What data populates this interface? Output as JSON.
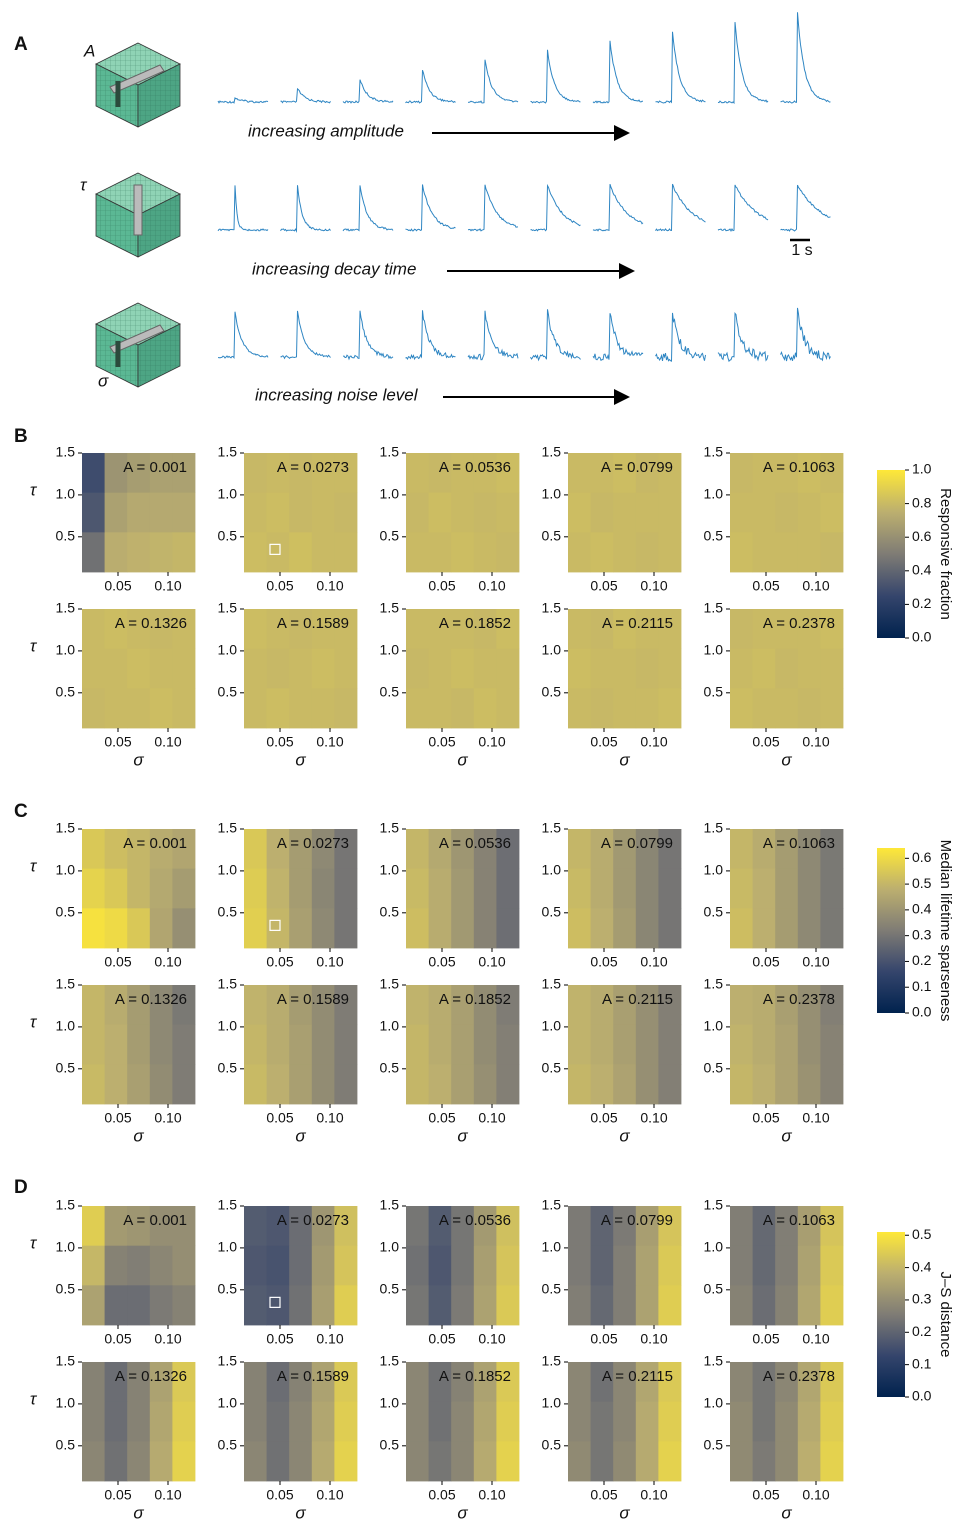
{
  "panel_a": {
    "label": "A",
    "rows": [
      {
        "param": "A",
        "caption": "increasing amplitude"
      },
      {
        "param": "τ",
        "caption": "increasing decay time"
      },
      {
        "param": "σ",
        "caption": "increasing noise level"
      }
    ],
    "scale_bar": "1 s"
  },
  "chart_data": [
    {
      "type": "heatmap",
      "panel_label": "B",
      "colorbar_label": "Responsive fraction",
      "colormap": "cividis",
      "xlabel": "σ",
      "ylabel": "τ",
      "xlim": [
        0.014,
        0.127
      ],
      "ylim": [
        0.08,
        1.5
      ],
      "xticks": [
        0.05,
        {
          "value": 0.1,
          "label": "0.10"
        }
      ],
      "yticks": [
        0.5,
        {
          "value": 1,
          "label": "1.0"
        },
        1.5
      ],
      "clim": [
        0,
        1
      ],
      "cticks": [
        {
          "value": 0,
          "label": "0.0"
        },
        0.2,
        0.4,
        0.6,
        0.8,
        {
          "value": 1,
          "label": "1.0"
        }
      ],
      "subplots": [
        {
          "title": "A = 0.001",
          "z": [
            [
              0.28,
              0.62,
              0.66,
              0.68,
              0.68
            ],
            [
              0.33,
              0.68,
              0.72,
              0.72,
              0.72
            ],
            [
              0.45,
              0.74,
              0.76,
              0.77,
              0.78
            ]
          ]
        },
        {
          "title": "A = 0.0273",
          "z": [
            [
              0.79,
              0.8,
              0.79,
              0.8,
              0.8
            ],
            [
              0.8,
              0.81,
              0.79,
              0.8,
              0.79
            ],
            [
              0.81,
              0.8,
              0.82,
              0.8,
              0.8
            ]
          ],
          "marker": {
            "x": 0.045,
            "y": 0.35
          }
        },
        {
          "title": "A = 0.0536",
          "z": [
            [
              0.8,
              0.79,
              0.8,
              0.8,
              0.81
            ],
            [
              0.79,
              0.81,
              0.8,
              0.79,
              0.8
            ],
            [
              0.8,
              0.8,
              0.81,
              0.8,
              0.79
            ]
          ]
        },
        {
          "title": "A = 0.0799",
          "z": [
            [
              0.8,
              0.8,
              0.81,
              0.79,
              0.8
            ],
            [
              0.81,
              0.79,
              0.8,
              0.8,
              0.8
            ],
            [
              0.8,
              0.81,
              0.8,
              0.79,
              0.8
            ]
          ]
        },
        {
          "title": "A = 0.1063",
          "z": [
            [
              0.79,
              0.8,
              0.8,
              0.81,
              0.8
            ],
            [
              0.8,
              0.8,
              0.79,
              0.8,
              0.81
            ],
            [
              0.81,
              0.8,
              0.8,
              0.8,
              0.79
            ]
          ]
        },
        {
          "title": "A = 0.1326",
          "z": [
            [
              0.8,
              0.81,
              0.8,
              0.79,
              0.8
            ],
            [
              0.8,
              0.8,
              0.81,
              0.8,
              0.8
            ],
            [
              0.79,
              0.8,
              0.8,
              0.81,
              0.8
            ]
          ]
        },
        {
          "title": "A = 0.1589",
          "z": [
            [
              0.81,
              0.8,
              0.79,
              0.8,
              0.8
            ],
            [
              0.8,
              0.79,
              0.8,
              0.81,
              0.8
            ],
            [
              0.8,
              0.81,
              0.8,
              0.8,
              0.79
            ]
          ]
        },
        {
          "title": "A = 0.1852",
          "z": [
            [
              0.8,
              0.8,
              0.8,
              0.79,
              0.81
            ],
            [
              0.79,
              0.8,
              0.81,
              0.8,
              0.8
            ],
            [
              0.8,
              0.8,
              0.79,
              0.81,
              0.8
            ]
          ]
        },
        {
          "title": "A = 0.2115",
          "z": [
            [
              0.8,
              0.79,
              0.81,
              0.8,
              0.8
            ],
            [
              0.81,
              0.8,
              0.8,
              0.79,
              0.8
            ],
            [
              0.8,
              0.79,
              0.8,
              0.8,
              0.81
            ]
          ]
        },
        {
          "title": "A = 0.2378",
          "z": [
            [
              0.79,
              0.8,
              0.8,
              0.8,
              0.81
            ],
            [
              0.8,
              0.81,
              0.79,
              0.8,
              0.8
            ],
            [
              0.81,
              0.8,
              0.8,
              0.79,
              0.8
            ]
          ]
        }
      ]
    },
    {
      "type": "heatmap",
      "panel_label": "C",
      "colorbar_label": "Median lifetime sparseness",
      "colormap": "cividis",
      "xlabel": "σ",
      "ylabel": "τ",
      "xlim": [
        0.014,
        0.127
      ],
      "ylim": [
        0.08,
        1.5
      ],
      "xticks": [
        0.05,
        {
          "value": 0.1,
          "label": "0.10"
        }
      ],
      "yticks": [
        0.5,
        {
          "value": 1,
          "label": "1.0"
        },
        1.5
      ],
      "clim": [
        0,
        0.64
      ],
      "cticks": [
        {
          "value": 0,
          "label": "0.0"
        },
        0.1,
        0.2,
        0.3,
        0.4,
        0.5,
        0.6
      ],
      "subplots": [
        {
          "title": "A = 0.001",
          "z": [
            [
              0.55,
              0.52,
              0.5,
              0.47,
              0.45
            ],
            [
              0.58,
              0.55,
              0.5,
              0.46,
              0.42
            ],
            [
              0.62,
              0.6,
              0.55,
              0.45,
              0.38
            ]
          ]
        },
        {
          "title": "A = 0.0273",
          "z": [
            [
              0.55,
              0.48,
              0.42,
              0.36,
              0.3
            ],
            [
              0.56,
              0.49,
              0.42,
              0.35,
              0.3
            ],
            [
              0.57,
              0.5,
              0.43,
              0.36,
              0.3
            ]
          ],
          "marker": {
            "x": 0.045,
            "y": 0.35
          }
        },
        {
          "title": "A = 0.0536",
          "z": [
            [
              0.5,
              0.46,
              0.4,
              0.34,
              0.28
            ],
            [
              0.51,
              0.47,
              0.41,
              0.34,
              0.28
            ],
            [
              0.52,
              0.47,
              0.41,
              0.34,
              0.28
            ]
          ]
        },
        {
          "title": "A = 0.0799",
          "z": [
            [
              0.5,
              0.47,
              0.41,
              0.35,
              0.3
            ],
            [
              0.51,
              0.47,
              0.41,
              0.35,
              0.3
            ],
            [
              0.52,
              0.48,
              0.42,
              0.35,
              0.3
            ]
          ]
        },
        {
          "title": "A = 0.1063",
          "z": [
            [
              0.5,
              0.47,
              0.42,
              0.36,
              0.31
            ],
            [
              0.51,
              0.48,
              0.42,
              0.36,
              0.31
            ],
            [
              0.52,
              0.48,
              0.42,
              0.36,
              0.31
            ]
          ]
        },
        {
          "title": "A = 0.1326",
          "z": [
            [
              0.5,
              0.47,
              0.42,
              0.36,
              0.31
            ],
            [
              0.5,
              0.48,
              0.42,
              0.36,
              0.32
            ],
            [
              0.51,
              0.48,
              0.43,
              0.37,
              0.32
            ]
          ]
        },
        {
          "title": "A = 0.1589",
          "z": [
            [
              0.49,
              0.47,
              0.42,
              0.37,
              0.32
            ],
            [
              0.5,
              0.47,
              0.43,
              0.37,
              0.32
            ],
            [
              0.51,
              0.48,
              0.43,
              0.37,
              0.32
            ]
          ]
        },
        {
          "title": "A = 0.1852",
          "z": [
            [
              0.49,
              0.47,
              0.43,
              0.37,
              0.32
            ],
            [
              0.5,
              0.47,
              0.43,
              0.37,
              0.33
            ],
            [
              0.5,
              0.48,
              0.43,
              0.38,
              0.33
            ]
          ]
        },
        {
          "title": "A = 0.2115",
          "z": [
            [
              0.49,
              0.47,
              0.43,
              0.38,
              0.33
            ],
            [
              0.49,
              0.47,
              0.43,
              0.38,
              0.33
            ],
            [
              0.5,
              0.48,
              0.44,
              0.38,
              0.33
            ]
          ]
        },
        {
          "title": "A = 0.2378",
          "z": [
            [
              0.48,
              0.47,
              0.43,
              0.38,
              0.33
            ],
            [
              0.49,
              0.47,
              0.44,
              0.38,
              0.34
            ],
            [
              0.5,
              0.48,
              0.44,
              0.39,
              0.34
            ]
          ]
        }
      ]
    },
    {
      "type": "heatmap",
      "panel_label": "D",
      "colorbar_label": "J–S distance",
      "colormap": "cividis",
      "xlabel": "σ",
      "ylabel": "τ",
      "xlim": [
        0.014,
        0.127
      ],
      "ylim": [
        0.08,
        1.5
      ],
      "xticks": [
        0.05,
        {
          "value": 0.1,
          "label": "0.10"
        }
      ],
      "yticks": [
        0.5,
        {
          "value": 1,
          "label": "1.0"
        },
        1.5
      ],
      "clim": [
        0,
        0.51
      ],
      "cticks": [
        {
          "value": 0,
          "label": "0.0"
        },
        0.1,
        0.2,
        0.3,
        0.4,
        0.5
      ],
      "subplots": [
        {
          "title": "A = 0.001",
          "z": [
            [
              0.45,
              0.33,
              0.32,
              0.3,
              0.3
            ],
            [
              0.4,
              0.27,
              0.26,
              0.28,
              0.3
            ],
            [
              0.35,
              0.22,
              0.22,
              0.25,
              0.27
            ]
          ]
        },
        {
          "title": "A = 0.0273",
          "z": [
            [
              0.18,
              0.17,
              0.22,
              0.32,
              0.42
            ],
            [
              0.17,
              0.16,
              0.22,
              0.33,
              0.43
            ],
            [
              0.18,
              0.17,
              0.23,
              0.34,
              0.45
            ]
          ],
          "marker": {
            "x": 0.045,
            "y": 0.35
          }
        },
        {
          "title": "A = 0.0536",
          "z": [
            [
              0.24,
              0.18,
              0.24,
              0.33,
              0.42
            ],
            [
              0.23,
              0.17,
              0.24,
              0.34,
              0.43
            ],
            [
              0.24,
              0.18,
              0.25,
              0.35,
              0.44
            ]
          ]
        },
        {
          "title": "A = 0.0799",
          "z": [
            [
              0.25,
              0.2,
              0.25,
              0.34,
              0.43
            ],
            [
              0.25,
              0.2,
              0.26,
              0.35,
              0.44
            ],
            [
              0.26,
              0.21,
              0.26,
              0.35,
              0.45
            ]
          ]
        },
        {
          "title": "A = 0.1063",
          "z": [
            [
              0.26,
              0.21,
              0.26,
              0.34,
              0.43
            ],
            [
              0.26,
              0.21,
              0.26,
              0.35,
              0.44
            ],
            [
              0.27,
              0.22,
              0.27,
              0.36,
              0.45
            ]
          ]
        },
        {
          "title": "A = 0.1326",
          "z": [
            [
              0.27,
              0.22,
              0.27,
              0.35,
              0.44
            ],
            [
              0.27,
              0.22,
              0.27,
              0.36,
              0.45
            ],
            [
              0.28,
              0.23,
              0.28,
              0.37,
              0.46
            ]
          ]
        },
        {
          "title": "A = 0.1589",
          "z": [
            [
              0.27,
              0.22,
              0.27,
              0.35,
              0.44
            ],
            [
              0.27,
              0.23,
              0.28,
              0.36,
              0.45
            ],
            [
              0.28,
              0.23,
              0.28,
              0.37,
              0.46
            ]
          ]
        },
        {
          "title": "A = 0.1852",
          "z": [
            [
              0.28,
              0.23,
              0.27,
              0.35,
              0.44
            ],
            [
              0.28,
              0.23,
              0.28,
              0.36,
              0.45
            ],
            [
              0.28,
              0.24,
              0.28,
              0.37,
              0.46
            ]
          ]
        },
        {
          "title": "A = 0.2115",
          "z": [
            [
              0.28,
              0.23,
              0.28,
              0.36,
              0.44
            ],
            [
              0.28,
              0.24,
              0.28,
              0.37,
              0.45
            ],
            [
              0.29,
              0.24,
              0.29,
              0.37,
              0.46
            ]
          ]
        },
        {
          "title": "A = 0.2378",
          "z": [
            [
              0.28,
              0.24,
              0.28,
              0.36,
              0.44
            ],
            [
              0.29,
              0.24,
              0.29,
              0.37,
              0.45
            ],
            [
              0.29,
              0.25,
              0.29,
              0.38,
              0.46
            ]
          ]
        }
      ]
    }
  ]
}
